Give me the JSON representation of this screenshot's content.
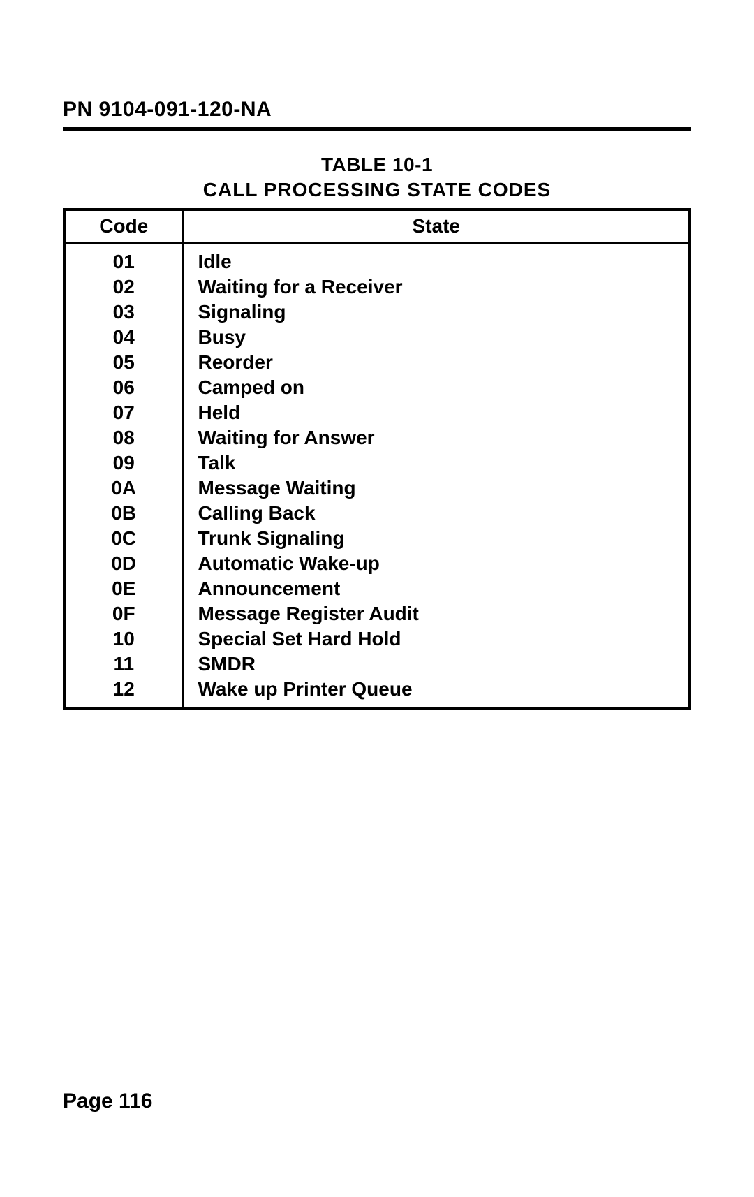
{
  "header": {
    "pn": "PN 9104-091-120-NA"
  },
  "table": {
    "caption": "TABLE 10-1",
    "title": "CALL PROCESSING STATE CODES",
    "columns": [
      "Code",
      "State"
    ],
    "rows": [
      {
        "code": "01",
        "state": "Idle"
      },
      {
        "code": "02",
        "state": "Waiting for a Receiver"
      },
      {
        "code": "03",
        "state": "Signaling"
      },
      {
        "code": "04",
        "state": "Busy"
      },
      {
        "code": "05",
        "state": "Reorder"
      },
      {
        "code": "06",
        "state": "Camped on"
      },
      {
        "code": "07",
        "state": "Held"
      },
      {
        "code": "08",
        "state": "Waiting for Answer"
      },
      {
        "code": "09",
        "state": "Talk"
      },
      {
        "code": "0A",
        "state": "Message Waiting"
      },
      {
        "code": "0B",
        "state": "Calling Back"
      },
      {
        "code": "0C",
        "state": "Trunk Signaling"
      },
      {
        "code": "0D",
        "state": "Automatic Wake-up"
      },
      {
        "code": "0E",
        "state": "Announcement"
      },
      {
        "code": "0F",
        "state": "Message Register Audit"
      },
      {
        "code": "10",
        "state": "Special Set Hard Hold"
      },
      {
        "code": "11",
        "state": "SMDR"
      },
      {
        "code": "12",
        "state": "Wake up Printer Queue"
      }
    ]
  },
  "footer": {
    "page_label": "Page 116"
  }
}
